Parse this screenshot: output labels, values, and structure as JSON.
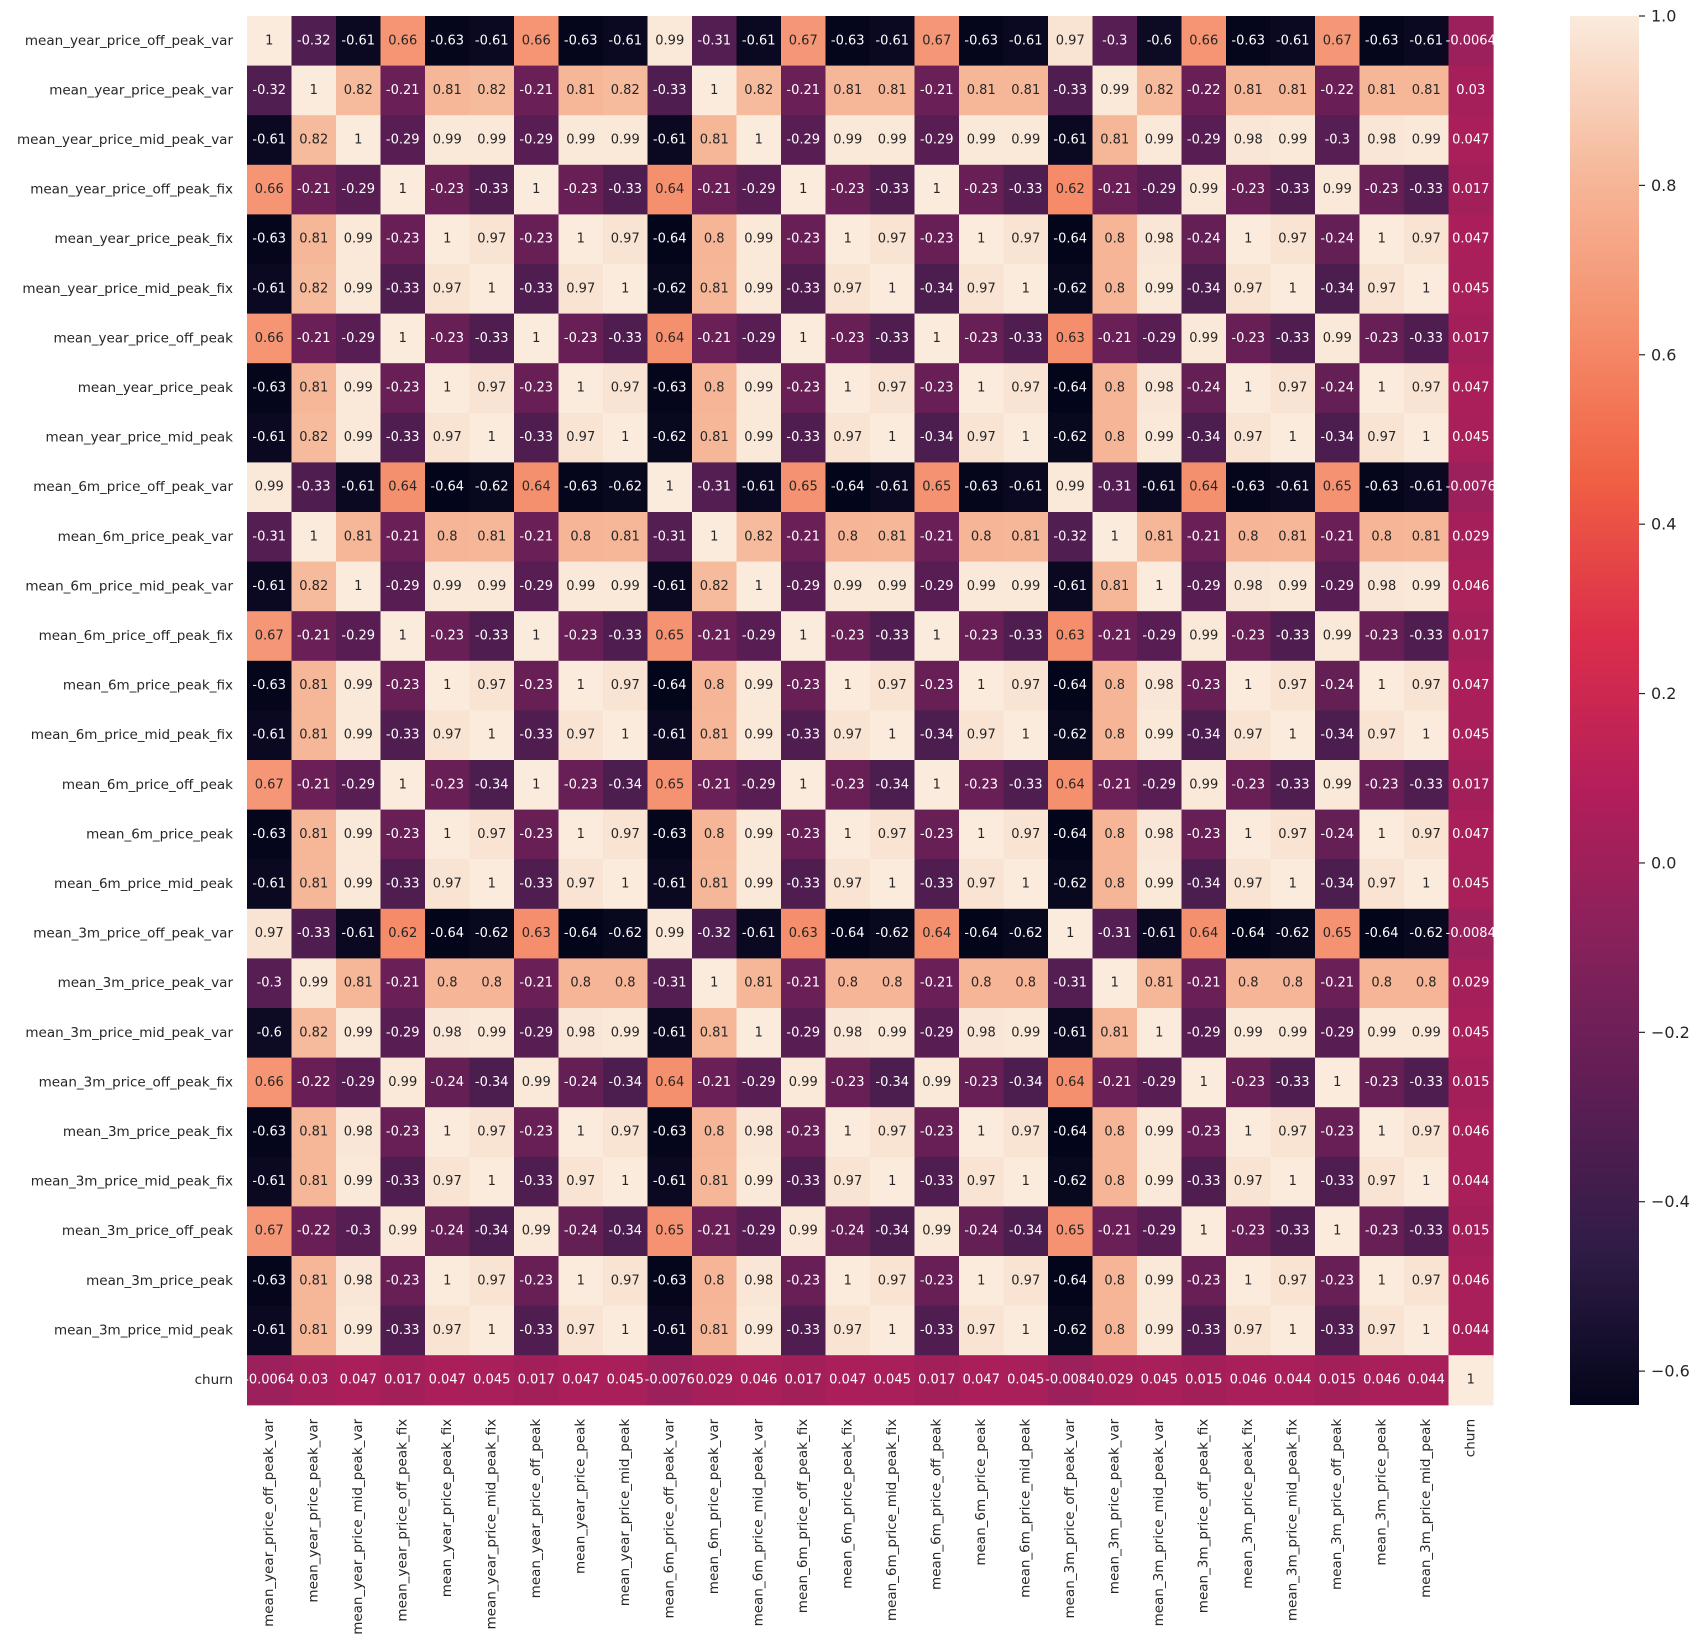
{
  "chart_data": {
    "type": "heatmap",
    "title": "",
    "xlabel": "",
    "ylabel": "",
    "labels": [
      "mean_year_price_off_peak_var",
      "mean_year_price_peak_var",
      "mean_year_price_mid_peak_var",
      "mean_year_price_off_peak_fix",
      "mean_year_price_peak_fix",
      "mean_year_price_mid_peak_fix",
      "mean_year_price_off_peak",
      "mean_year_price_peak",
      "mean_year_price_mid_peak",
      "mean_6m_price_off_peak_var",
      "mean_6m_price_peak_var",
      "mean_6m_price_mid_peak_var",
      "mean_6m_price_off_peak_fix",
      "mean_6m_price_peak_fix",
      "mean_6m_price_mid_peak_fix",
      "mean_6m_price_off_peak",
      "mean_6m_price_peak",
      "mean_6m_price_mid_peak",
      "mean_3m_price_off_peak_var",
      "mean_3m_price_peak_var",
      "mean_3m_price_mid_peak_var",
      "mean_3m_price_off_peak_fix",
      "mean_3m_price_peak_fix",
      "mean_3m_price_mid_peak_fix",
      "mean_3m_price_off_peak",
      "mean_3m_price_peak",
      "mean_3m_price_mid_peak",
      "churn"
    ],
    "cell_labels": [
      [
        "1",
        "-0.32",
        "-0.61",
        "0.66",
        "-0.63",
        "-0.61",
        "0.66",
        "-0.63",
        "-0.61",
        "0.99",
        "-0.31",
        "-0.61",
        "0.67",
        "-0.63",
        "-0.61",
        "0.67",
        "-0.63",
        "-0.61",
        "0.97",
        "-0.3",
        "-0.6",
        "0.66",
        "-0.63",
        "-0.61",
        "0.67",
        "-0.63",
        "-0.61",
        "-0.0064"
      ],
      [
        "-0.32",
        "1",
        "0.82",
        "-0.21",
        "0.81",
        "0.82",
        "-0.21",
        "0.81",
        "0.82",
        "-0.33",
        "1",
        "0.82",
        "-0.21",
        "0.81",
        "0.81",
        "-0.21",
        "0.81",
        "0.81",
        "-0.33",
        "0.99",
        "0.82",
        "-0.22",
        "0.81",
        "0.81",
        "-0.22",
        "0.81",
        "0.81",
        "0.03"
      ],
      [
        "-0.61",
        "0.82",
        "1",
        "-0.29",
        "0.99",
        "0.99",
        "-0.29",
        "0.99",
        "0.99",
        "-0.61",
        "0.81",
        "1",
        "-0.29",
        "0.99",
        "0.99",
        "-0.29",
        "0.99",
        "0.99",
        "-0.61",
        "0.81",
        "0.99",
        "-0.29",
        "0.98",
        "0.99",
        "-0.3",
        "0.98",
        "0.99",
        "0.047"
      ],
      [
        "0.66",
        "-0.21",
        "-0.29",
        "1",
        "-0.23",
        "-0.33",
        "1",
        "-0.23",
        "-0.33",
        "0.64",
        "-0.21",
        "-0.29",
        "1",
        "-0.23",
        "-0.33",
        "1",
        "-0.23",
        "-0.33",
        "0.62",
        "-0.21",
        "-0.29",
        "0.99",
        "-0.23",
        "-0.33",
        "0.99",
        "-0.23",
        "-0.33",
        "0.017"
      ],
      [
        "-0.63",
        "0.81",
        "0.99",
        "-0.23",
        "1",
        "0.97",
        "-0.23",
        "1",
        "0.97",
        "-0.64",
        "0.8",
        "0.99",
        "-0.23",
        "1",
        "0.97",
        "-0.23",
        "1",
        "0.97",
        "-0.64",
        "0.8",
        "0.98",
        "-0.24",
        "1",
        "0.97",
        "-0.24",
        "1",
        "0.97",
        "0.047"
      ],
      [
        "-0.61",
        "0.82",
        "0.99",
        "-0.33",
        "0.97",
        "1",
        "-0.33",
        "0.97",
        "1",
        "-0.62",
        "0.81",
        "0.99",
        "-0.33",
        "0.97",
        "1",
        "-0.34",
        "0.97",
        "1",
        "-0.62",
        "0.8",
        "0.99",
        "-0.34",
        "0.97",
        "1",
        "-0.34",
        "0.97",
        "1",
        "0.045"
      ],
      [
        "0.66",
        "-0.21",
        "-0.29",
        "1",
        "-0.23",
        "-0.33",
        "1",
        "-0.23",
        "-0.33",
        "0.64",
        "-0.21",
        "-0.29",
        "1",
        "-0.23",
        "-0.33",
        "1",
        "-0.23",
        "-0.33",
        "0.63",
        "-0.21",
        "-0.29",
        "0.99",
        "-0.23",
        "-0.33",
        "0.99",
        "-0.23",
        "-0.33",
        "0.017"
      ],
      [
        "-0.63",
        "0.81",
        "0.99",
        "-0.23",
        "1",
        "0.97",
        "-0.23",
        "1",
        "0.97",
        "-0.63",
        "0.8",
        "0.99",
        "-0.23",
        "1",
        "0.97",
        "-0.23",
        "1",
        "0.97",
        "-0.64",
        "0.8",
        "0.98",
        "-0.24",
        "1",
        "0.97",
        "-0.24",
        "1",
        "0.97",
        "0.047"
      ],
      [
        "-0.61",
        "0.82",
        "0.99",
        "-0.33",
        "0.97",
        "1",
        "-0.33",
        "0.97",
        "1",
        "-0.62",
        "0.81",
        "0.99",
        "-0.33",
        "0.97",
        "1",
        "-0.34",
        "0.97",
        "1",
        "-0.62",
        "0.8",
        "0.99",
        "-0.34",
        "0.97",
        "1",
        "-0.34",
        "0.97",
        "1",
        "0.045"
      ],
      [
        "0.99",
        "-0.33",
        "-0.61",
        "0.64",
        "-0.64",
        "-0.62",
        "0.64",
        "-0.63",
        "-0.62",
        "1",
        "-0.31",
        "-0.61",
        "0.65",
        "-0.64",
        "-0.61",
        "0.65",
        "-0.63",
        "-0.61",
        "0.99",
        "-0.31",
        "-0.61",
        "0.64",
        "-0.63",
        "-0.61",
        "0.65",
        "-0.63",
        "-0.61",
        "-0.0076"
      ],
      [
        "-0.31",
        "1",
        "0.81",
        "-0.21",
        "0.8",
        "0.81",
        "-0.21",
        "0.8",
        "0.81",
        "-0.31",
        "1",
        "0.82",
        "-0.21",
        "0.8",
        "0.81",
        "-0.21",
        "0.8",
        "0.81",
        "-0.32",
        "1",
        "0.81",
        "-0.21",
        "0.8",
        "0.81",
        "-0.21",
        "0.8",
        "0.81",
        "0.029"
      ],
      [
        "-0.61",
        "0.82",
        "1",
        "-0.29",
        "0.99",
        "0.99",
        "-0.29",
        "0.99",
        "0.99",
        "-0.61",
        "0.82",
        "1",
        "-0.29",
        "0.99",
        "0.99",
        "-0.29",
        "0.99",
        "0.99",
        "-0.61",
        "0.81",
        "1",
        "-0.29",
        "0.98",
        "0.99",
        "-0.29",
        "0.98",
        "0.99",
        "0.046"
      ],
      [
        "0.67",
        "-0.21",
        "-0.29",
        "1",
        "-0.23",
        "-0.33",
        "1",
        "-0.23",
        "-0.33",
        "0.65",
        "-0.21",
        "-0.29",
        "1",
        "-0.23",
        "-0.33",
        "1",
        "-0.23",
        "-0.33",
        "0.63",
        "-0.21",
        "-0.29",
        "0.99",
        "-0.23",
        "-0.33",
        "0.99",
        "-0.23",
        "-0.33",
        "0.017"
      ],
      [
        "-0.63",
        "0.81",
        "0.99",
        "-0.23",
        "1",
        "0.97",
        "-0.23",
        "1",
        "0.97",
        "-0.64",
        "0.8",
        "0.99",
        "-0.23",
        "1",
        "0.97",
        "-0.23",
        "1",
        "0.97",
        "-0.64",
        "0.8",
        "0.98",
        "-0.23",
        "1",
        "0.97",
        "-0.24",
        "1",
        "0.97",
        "0.047"
      ],
      [
        "-0.61",
        "0.81",
        "0.99",
        "-0.33",
        "0.97",
        "1",
        "-0.33",
        "0.97",
        "1",
        "-0.61",
        "0.81",
        "0.99",
        "-0.33",
        "0.97",
        "1",
        "-0.34",
        "0.97",
        "1",
        "-0.62",
        "0.8",
        "0.99",
        "-0.34",
        "0.97",
        "1",
        "-0.34",
        "0.97",
        "1",
        "0.045"
      ],
      [
        "0.67",
        "-0.21",
        "-0.29",
        "1",
        "-0.23",
        "-0.34",
        "1",
        "-0.23",
        "-0.34",
        "0.65",
        "-0.21",
        "-0.29",
        "1",
        "-0.23",
        "-0.34",
        "1",
        "-0.23",
        "-0.33",
        "0.64",
        "-0.21",
        "-0.29",
        "0.99",
        "-0.23",
        "-0.33",
        "0.99",
        "-0.23",
        "-0.33",
        "0.017"
      ],
      [
        "-0.63",
        "0.81",
        "0.99",
        "-0.23",
        "1",
        "0.97",
        "-0.23",
        "1",
        "0.97",
        "-0.63",
        "0.8",
        "0.99",
        "-0.23",
        "1",
        "0.97",
        "-0.23",
        "1",
        "0.97",
        "-0.64",
        "0.8",
        "0.98",
        "-0.23",
        "1",
        "0.97",
        "-0.24",
        "1",
        "0.97",
        "0.047"
      ],
      [
        "-0.61",
        "0.81",
        "0.99",
        "-0.33",
        "0.97",
        "1",
        "-0.33",
        "0.97",
        "1",
        "-0.61",
        "0.81",
        "0.99",
        "-0.33",
        "0.97",
        "1",
        "-0.33",
        "0.97",
        "1",
        "-0.62",
        "0.8",
        "0.99",
        "-0.34",
        "0.97",
        "1",
        "-0.34",
        "0.97",
        "1",
        "0.045"
      ],
      [
        "0.97",
        "-0.33",
        "-0.61",
        "0.62",
        "-0.64",
        "-0.62",
        "0.63",
        "-0.64",
        "-0.62",
        "0.99",
        "-0.32",
        "-0.61",
        "0.63",
        "-0.64",
        "-0.62",
        "0.64",
        "-0.64",
        "-0.62",
        "1",
        "-0.31",
        "-0.61",
        "0.64",
        "-0.64",
        "-0.62",
        "0.65",
        "-0.64",
        "-0.62",
        "-0.0084"
      ],
      [
        "-0.3",
        "0.99",
        "0.81",
        "-0.21",
        "0.8",
        "0.8",
        "-0.21",
        "0.8",
        "0.8",
        "-0.31",
        "1",
        "0.81",
        "-0.21",
        "0.8",
        "0.8",
        "-0.21",
        "0.8",
        "0.8",
        "-0.31",
        "1",
        "0.81",
        "-0.21",
        "0.8",
        "0.8",
        "-0.21",
        "0.8",
        "0.8",
        "0.029"
      ],
      [
        "-0.6",
        "0.82",
        "0.99",
        "-0.29",
        "0.98",
        "0.99",
        "-0.29",
        "0.98",
        "0.99",
        "-0.61",
        "0.81",
        "1",
        "-0.29",
        "0.98",
        "0.99",
        "-0.29",
        "0.98",
        "0.99",
        "-0.61",
        "0.81",
        "1",
        "-0.29",
        "0.99",
        "0.99",
        "-0.29",
        "0.99",
        "0.99",
        "0.045"
      ],
      [
        "0.66",
        "-0.22",
        "-0.29",
        "0.99",
        "-0.24",
        "-0.34",
        "0.99",
        "-0.24",
        "-0.34",
        "0.64",
        "-0.21",
        "-0.29",
        "0.99",
        "-0.23",
        "-0.34",
        "0.99",
        "-0.23",
        "-0.34",
        "0.64",
        "-0.21",
        "-0.29",
        "1",
        "-0.23",
        "-0.33",
        "1",
        "-0.23",
        "-0.33",
        "0.015"
      ],
      [
        "-0.63",
        "0.81",
        "0.98",
        "-0.23",
        "1",
        "0.97",
        "-0.23",
        "1",
        "0.97",
        "-0.63",
        "0.8",
        "0.98",
        "-0.23",
        "1",
        "0.97",
        "-0.23",
        "1",
        "0.97",
        "-0.64",
        "0.8",
        "0.99",
        "-0.23",
        "1",
        "0.97",
        "-0.23",
        "1",
        "0.97",
        "0.046"
      ],
      [
        "-0.61",
        "0.81",
        "0.99",
        "-0.33",
        "0.97",
        "1",
        "-0.33",
        "0.97",
        "1",
        "-0.61",
        "0.81",
        "0.99",
        "-0.33",
        "0.97",
        "1",
        "-0.33",
        "0.97",
        "1",
        "-0.62",
        "0.8",
        "0.99",
        "-0.33",
        "0.97",
        "1",
        "-0.33",
        "0.97",
        "1",
        "0.044"
      ],
      [
        "0.67",
        "-0.22",
        "-0.3",
        "0.99",
        "-0.24",
        "-0.34",
        "0.99",
        "-0.24",
        "-0.34",
        "0.65",
        "-0.21",
        "-0.29",
        "0.99",
        "-0.24",
        "-0.34",
        "0.99",
        "-0.24",
        "-0.34",
        "0.65",
        "-0.21",
        "-0.29",
        "1",
        "-0.23",
        "-0.33",
        "1",
        "-0.23",
        "-0.33",
        "0.015"
      ],
      [
        "-0.63",
        "0.81",
        "0.98",
        "-0.23",
        "1",
        "0.97",
        "-0.23",
        "1",
        "0.97",
        "-0.63",
        "0.8",
        "0.98",
        "-0.23",
        "1",
        "0.97",
        "-0.23",
        "1",
        "0.97",
        "-0.64",
        "0.8",
        "0.99",
        "-0.23",
        "1",
        "0.97",
        "-0.23",
        "1",
        "0.97",
        "0.046"
      ],
      [
        "-0.61",
        "0.81",
        "0.99",
        "-0.33",
        "0.97",
        "1",
        "-0.33",
        "0.97",
        "1",
        "-0.61",
        "0.81",
        "0.99",
        "-0.33",
        "0.97",
        "1",
        "-0.33",
        "0.97",
        "1",
        "-0.62",
        "0.8",
        "0.99",
        "-0.33",
        "0.97",
        "1",
        "-0.33",
        "0.97",
        "1",
        "0.044"
      ],
      [
        "-0.0064",
        "0.03",
        "0.047",
        "0.017",
        "0.047",
        "0.045",
        "0.017",
        "0.047",
        "0.045",
        "-0.0076",
        "0.029",
        "0.046",
        "0.017",
        "0.047",
        "0.045",
        "0.017",
        "0.047",
        "0.045",
        "-0.0084",
        "0.029",
        "0.045",
        "0.015",
        "0.046",
        "0.044",
        "0.015",
        "0.046",
        "0.044",
        "1"
      ]
    ],
    "colorbar": {
      "vmin": -0.64,
      "vmax": 1.0,
      "ticks": [
        -0.6,
        -0.4,
        -0.2,
        0.0,
        0.2,
        0.4,
        0.6,
        0.8,
        1.0
      ],
      "tick_labels": [
        "−0.6",
        "−0.4",
        "−0.2",
        "0.0",
        "0.2",
        "0.4",
        "0.6",
        "0.8",
        "1.0"
      ]
    },
    "colormap": {
      "name": "rocket",
      "stops": [
        "#03051a",
        "#2f1c46",
        "#5c1e54",
        "#87215b",
        "#b41e5a",
        "#dc2e4a",
        "#f06043",
        "#f58f6d",
        "#f6b99b",
        "#faebdd"
      ]
    },
    "annotations": true,
    "grid": false,
    "legend": "colorbar-right"
  }
}
